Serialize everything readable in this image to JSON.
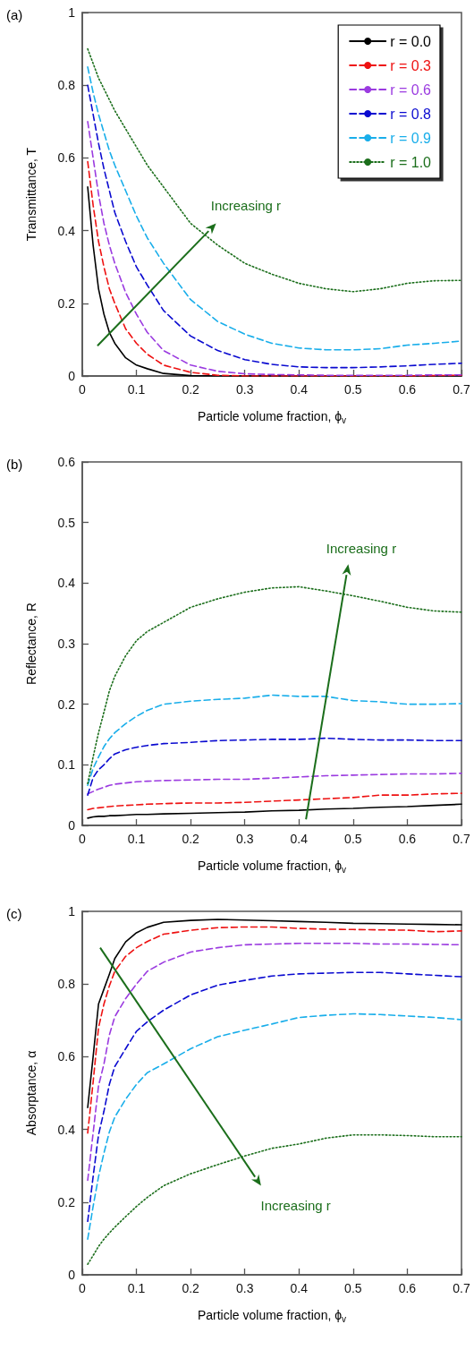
{
  "chart_data": [
    {
      "type": "line",
      "title": "(a)",
      "xlabel": "Particle volume fraction, ϕ$_{v}$",
      "ylabel": "Transmittance, T",
      "annotations": [
        "Increasing r"
      ],
      "legend": "top right",
      "grid": false,
      "marker": "none",
      "x": [
        0.01,
        0.02,
        0.03,
        0.04,
        0.05,
        0.06,
        0.08,
        0.1,
        0.12,
        0.15,
        0.2,
        0.25,
        0.3,
        0.35,
        0.4,
        0.45,
        0.5,
        0.55,
        0.6,
        0.65,
        0.7
      ],
      "xlim": [
        0,
        0.7
      ],
      "xticks": [
        0,
        0.1,
        0.2,
        0.3,
        0.4,
        0.5,
        0.6,
        0.7
      ],
      "ylim": [
        0,
        1
      ],
      "yticks": [
        0,
        0.2,
        0.4,
        0.6,
        0.8,
        1
      ],
      "series": [
        {
          "name": "r = 0.0",
          "color": "#000000",
          "line_style": "solid",
          "values": [
            0.52,
            0.36,
            0.24,
            0.17,
            0.12,
            0.09,
            0.05,
            0.03,
            0.02,
            0.007,
            0.001,
            0,
            0,
            0,
            0,
            0,
            0,
            0,
            0,
            0,
            0
          ]
        },
        {
          "name": "r = 0.3",
          "color": "#ee1111",
          "line_style": "dashed",
          "values": [
            0.59,
            0.47,
            0.37,
            0.3,
            0.24,
            0.2,
            0.13,
            0.09,
            0.06,
            0.03,
            0.01,
            0.002,
            0,
            0,
            0,
            0,
            0,
            0,
            0,
            0.001,
            0.002
          ]
        },
        {
          "name": "r = 0.6",
          "color": "#9b3be0",
          "line_style": "dashed",
          "values": [
            0.7,
            0.6,
            0.5,
            0.42,
            0.36,
            0.31,
            0.23,
            0.17,
            0.12,
            0.07,
            0.03,
            0.013,
            0.006,
            0.004,
            0.003,
            0.002,
            0.002,
            0.002,
            0.002,
            0.003,
            0.003
          ]
        },
        {
          "name": "r = 0.8",
          "color": "#0a0ad0",
          "line_style": "dashed",
          "values": [
            0.8,
            0.72,
            0.64,
            0.57,
            0.51,
            0.45,
            0.37,
            0.3,
            0.25,
            0.18,
            0.11,
            0.07,
            0.045,
            0.032,
            0.025,
            0.023,
            0.023,
            0.025,
            0.028,
            0.032,
            0.035
          ]
        },
        {
          "name": "r = 0.9",
          "color": "#19aeea",
          "line_style": "dashed",
          "values": [
            0.85,
            0.78,
            0.72,
            0.67,
            0.62,
            0.58,
            0.51,
            0.44,
            0.38,
            0.31,
            0.21,
            0.15,
            0.115,
            0.09,
            0.077,
            0.072,
            0.072,
            0.075,
            0.085,
            0.09,
            0.096
          ]
        },
        {
          "name": "r = 1.0",
          "color": "#1b6e1b",
          "line_style": "dotted",
          "values": [
            0.9,
            0.86,
            0.82,
            0.79,
            0.76,
            0.73,
            0.68,
            0.63,
            0.58,
            0.52,
            0.42,
            0.36,
            0.31,
            0.28,
            0.255,
            0.24,
            0.232,
            0.24,
            0.255,
            0.262,
            0.263
          ]
        }
      ]
    },
    {
      "type": "line",
      "title": "(b)",
      "xlabel": "Particle volume fraction, ϕ$_{v}$",
      "ylabel": "Reflectance, R",
      "annotations": [
        "Increasing r"
      ],
      "grid": false,
      "marker": "none",
      "x": [
        0.01,
        0.02,
        0.03,
        0.04,
        0.05,
        0.06,
        0.08,
        0.1,
        0.12,
        0.15,
        0.2,
        0.25,
        0.3,
        0.35,
        0.4,
        0.45,
        0.5,
        0.55,
        0.6,
        0.65,
        0.7
      ],
      "xlim": [
        0,
        0.7
      ],
      "xticks": [
        0,
        0.1,
        0.2,
        0.3,
        0.4,
        0.5,
        0.6,
        0.7
      ],
      "ylim": [
        0,
        0.6
      ],
      "yticks": [
        0,
        0.1,
        0.2,
        0.3,
        0.4,
        0.5,
        0.6
      ],
      "series": [
        {
          "color": "#000000",
          "line_style": "solid",
          "values": [
            0.012,
            0.014,
            0.015,
            0.015,
            0.016,
            0.016,
            0.017,
            0.018,
            0.018,
            0.019,
            0.02,
            0.021,
            0.022,
            0.024,
            0.025,
            0.027,
            0.028,
            0.03,
            0.031,
            0.033,
            0.035
          ]
        },
        {
          "color": "#ee1111",
          "line_style": "dashed",
          "values": [
            0.026,
            0.028,
            0.029,
            0.03,
            0.031,
            0.032,
            0.033,
            0.034,
            0.035,
            0.036,
            0.037,
            0.037,
            0.038,
            0.04,
            0.042,
            0.044,
            0.046,
            0.05,
            0.05,
            0.052,
            0.053
          ]
        },
        {
          "color": "#9b3be0",
          "line_style": "dashed",
          "values": [
            0.052,
            0.056,
            0.06,
            0.063,
            0.066,
            0.068,
            0.07,
            0.072,
            0.073,
            0.074,
            0.075,
            0.076,
            0.076,
            0.078,
            0.08,
            0.082,
            0.083,
            0.084,
            0.085,
            0.085,
            0.086
          ]
        },
        {
          "color": "#0a0ad0",
          "line_style": "dashed",
          "values": [
            0.05,
            0.079,
            0.092,
            0.1,
            0.11,
            0.118,
            0.125,
            0.129,
            0.132,
            0.135,
            0.137,
            0.14,
            0.141,
            0.142,
            0.142,
            0.144,
            0.142,
            0.141,
            0.141,
            0.14,
            0.14
          ]
        },
        {
          "color": "#19aeea",
          "line_style": "dashed",
          "values": [
            0.066,
            0.094,
            0.113,
            0.13,
            0.143,
            0.153,
            0.168,
            0.18,
            0.19,
            0.2,
            0.205,
            0.208,
            0.21,
            0.215,
            0.213,
            0.213,
            0.206,
            0.204,
            0.2,
            0.2,
            0.201
          ]
        },
        {
          "color": "#1b6e1b",
          "line_style": "dotted",
          "values": [
            0.069,
            0.113,
            0.153,
            0.187,
            0.222,
            0.246,
            0.28,
            0.305,
            0.32,
            0.335,
            0.36,
            0.374,
            0.385,
            0.392,
            0.394,
            0.387,
            0.379,
            0.37,
            0.36,
            0.354,
            0.352
          ]
        }
      ]
    },
    {
      "type": "line",
      "title": "(c)",
      "xlabel": "Particle volume fraction, ϕ$_{v}$",
      "ylabel": "Absorptance, α",
      "annotations": [
        "Increasing r"
      ],
      "grid": false,
      "marker": "none",
      "x": [
        0.01,
        0.02,
        0.03,
        0.04,
        0.05,
        0.06,
        0.08,
        0.1,
        0.12,
        0.15,
        0.2,
        0.25,
        0.3,
        0.35,
        0.4,
        0.45,
        0.5,
        0.55,
        0.6,
        0.65,
        0.7
      ],
      "xlim": [
        0,
        0.7
      ],
      "xticks": [
        0,
        0.1,
        0.2,
        0.3,
        0.4,
        0.5,
        0.6,
        0.7
      ],
      "ylim": [
        0,
        1
      ],
      "yticks": [
        0,
        0.2,
        0.4,
        0.6,
        0.8,
        1
      ],
      "series": [
        {
          "color": "#000000",
          "line_style": "solid",
          "values": [
            0.46,
            0.6,
            0.745,
            0.786,
            0.827,
            0.87,
            0.916,
            0.941,
            0.956,
            0.97,
            0.975,
            0.978,
            0.976,
            0.974,
            0.972,
            0.97,
            0.967,
            0.966,
            0.965,
            0.964,
            0.963
          ]
        },
        {
          "color": "#ee1111",
          "line_style": "dashed",
          "values": [
            0.39,
            0.53,
            0.68,
            0.745,
            0.795,
            0.835,
            0.876,
            0.9,
            0.917,
            0.937,
            0.948,
            0.955,
            0.957,
            0.957,
            0.953,
            0.951,
            0.95,
            0.949,
            0.948,
            0.944,
            0.946
          ]
        },
        {
          "color": "#9b3be0",
          "line_style": "dashed",
          "values": [
            0.26,
            0.39,
            0.52,
            0.58,
            0.66,
            0.71,
            0.76,
            0.8,
            0.835,
            0.86,
            0.888,
            0.9,
            0.908,
            0.91,
            0.912,
            0.912,
            0.912,
            0.91,
            0.91,
            0.909,
            0.908
          ]
        },
        {
          "color": "#0a0ad0",
          "line_style": "dashed",
          "values": [
            0.147,
            0.27,
            0.385,
            0.45,
            0.524,
            0.573,
            0.622,
            0.67,
            0.696,
            0.728,
            0.77,
            0.797,
            0.81,
            0.822,
            0.828,
            0.83,
            0.832,
            0.832,
            0.828,
            0.824,
            0.82
          ]
        },
        {
          "color": "#19aeea",
          "line_style": "dashed",
          "values": [
            0.098,
            0.188,
            0.27,
            0.335,
            0.393,
            0.434,
            0.483,
            0.524,
            0.556,
            0.58,
            0.622,
            0.655,
            0.673,
            0.69,
            0.708,
            0.714,
            0.718,
            0.716,
            0.712,
            0.708,
            0.702
          ]
        },
        {
          "color": "#1b6e1b",
          "line_style": "dotted",
          "values": [
            0.029,
            0.053,
            0.078,
            0.098,
            0.115,
            0.131,
            0.16,
            0.188,
            0.213,
            0.245,
            0.278,
            0.303,
            0.327,
            0.348,
            0.36,
            0.376,
            0.385,
            0.385,
            0.383,
            0.38,
            0.38
          ]
        }
      ]
    }
  ]
}
